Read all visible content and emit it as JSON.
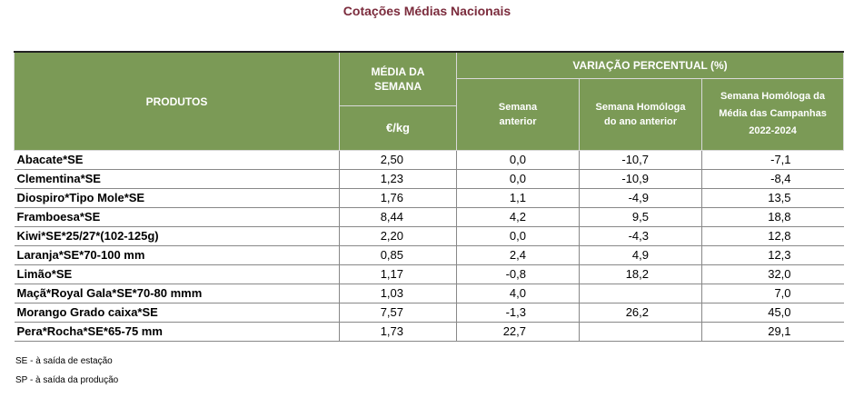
{
  "title": "Cotações Médias Nacionais",
  "header": {
    "produtos": "PRODUTOS",
    "media_l1": "MÉDIA DA",
    "media_l2": "SEMANA",
    "unit": "€/kg",
    "variacao": "VARIAÇÃO PERCENTUAL (%)",
    "semana_anterior_l1": "Semana",
    "semana_anterior_l2": "anterior",
    "homologa_l1": "Semana Homóloga",
    "homologa_l2": "do ano anterior",
    "campanhas_l1": "Semana Homóloga da",
    "campanhas_l2": "Média das Campanhas",
    "campanhas_l3": "2022-2024"
  },
  "rows": [
    {
      "produto": "Abacate*SE",
      "media": "2,50",
      "sem_ant": "0,0",
      "homologa": "-10,7",
      "campanhas": "-7,1"
    },
    {
      "produto": "Clementina*SE",
      "media": "1,23",
      "sem_ant": "0,0",
      "homologa": "-10,9",
      "campanhas": "-8,4"
    },
    {
      "produto": "Diospiro*Tipo Mole*SE",
      "media": "1,76",
      "sem_ant": "1,1",
      "homologa": "-4,9",
      "campanhas": "13,5"
    },
    {
      "produto": "Framboesa*SE",
      "media": "8,44",
      "sem_ant": "4,2",
      "homologa": "9,5",
      "campanhas": "18,8"
    },
    {
      "produto": "Kiwi*SE*25/27*(102-125g)",
      "media": "2,20",
      "sem_ant": "0,0",
      "homologa": "-4,3",
      "campanhas": "12,8"
    },
    {
      "produto": "Laranja*SE*70-100 mm",
      "media": "0,85",
      "sem_ant": "2,4",
      "homologa": "4,9",
      "campanhas": "12,3"
    },
    {
      "produto": "Limão*SE",
      "media": "1,17",
      "sem_ant": "-0,8",
      "homologa": "18,2",
      "campanhas": "32,0"
    },
    {
      "produto": "Maçã*Royal Gala*SE*70-80 mmm",
      "media": "1,03",
      "sem_ant": "4,0",
      "homologa": "",
      "campanhas": "7,0"
    },
    {
      "produto": "Morango Grado caixa*SE",
      "media": "7,57",
      "sem_ant": "-1,3",
      "homologa": "26,2",
      "campanhas": "45,0"
    },
    {
      "produto": "Pera*Rocha*SE*65-75 mm",
      "media": "1,73",
      "sem_ant": "22,7",
      "homologa": "",
      "campanhas": "29,1"
    }
  ],
  "notes": [
    "SE - à saída de estação",
    "SP - à saída da produção"
  ]
}
